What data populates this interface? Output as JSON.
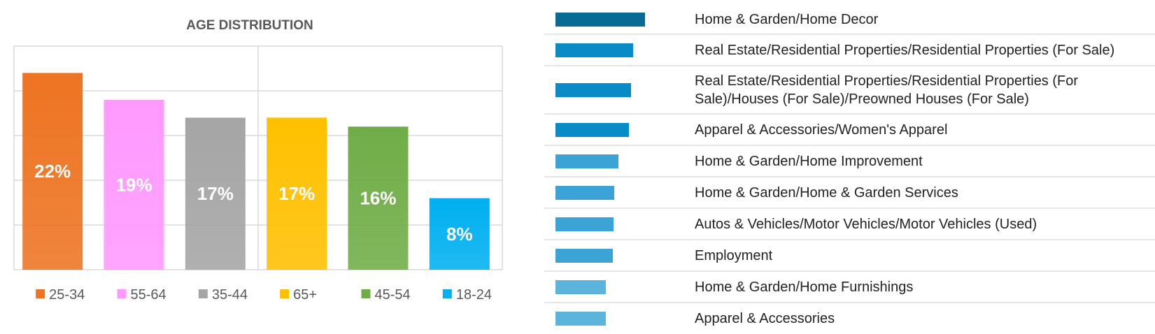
{
  "chart_data": [
    {
      "type": "bar",
      "title": "AGE DISTRIBUTION",
      "categories": [
        "25-34",
        "55-64",
        "35-44",
        "65+",
        "45-54",
        "18-24"
      ],
      "values": [
        22,
        19,
        17,
        17,
        16,
        8
      ],
      "value_labels": [
        "22%",
        "19%",
        "17%",
        "17%",
        "16%",
        "8%"
      ],
      "colors": [
        "#ED7422",
        "#FF99FF",
        "#A5A5A5",
        "#FFC000",
        "#70AD47",
        "#00B0F0"
      ],
      "ylim": [
        0,
        25
      ],
      "grid": true,
      "legend_position": "bottom",
      "xlabel": "",
      "ylabel": ""
    },
    {
      "type": "bar",
      "orientation": "horizontal",
      "categories": [
        "Home & Garden/Home Decor",
        "Real Estate/Residential Properties/Residential Properties (For Sale)",
        "Real Estate/Residential Properties/Residential Properties (For Sale)/Houses (For Sale)/Preowned Houses (For Sale)",
        "Apparel & Accessories/Women's Apparel",
        "Home & Garden/Home Improvement",
        "Home & Garden/Home & Garden Services",
        "Autos & Vehicles/Motor Vehicles/Motor Vehicles (Used)",
        "Employment",
        "Home & Garden/Home Furnishings",
        "Apparel & Accessories"
      ],
      "values": [
        1.0,
        0.87,
        0.84,
        0.82,
        0.7,
        0.66,
        0.65,
        0.64,
        0.56,
        0.56
      ],
      "colors": [
        "#0A6A96",
        "#0A8BC6",
        "#0A8BC6",
        "#0A8BC6",
        "#3CA3D6",
        "#3CA3D6",
        "#3CA3D6",
        "#3CA3D6",
        "#5AB4DC",
        "#5AB4DC"
      ]
    }
  ]
}
